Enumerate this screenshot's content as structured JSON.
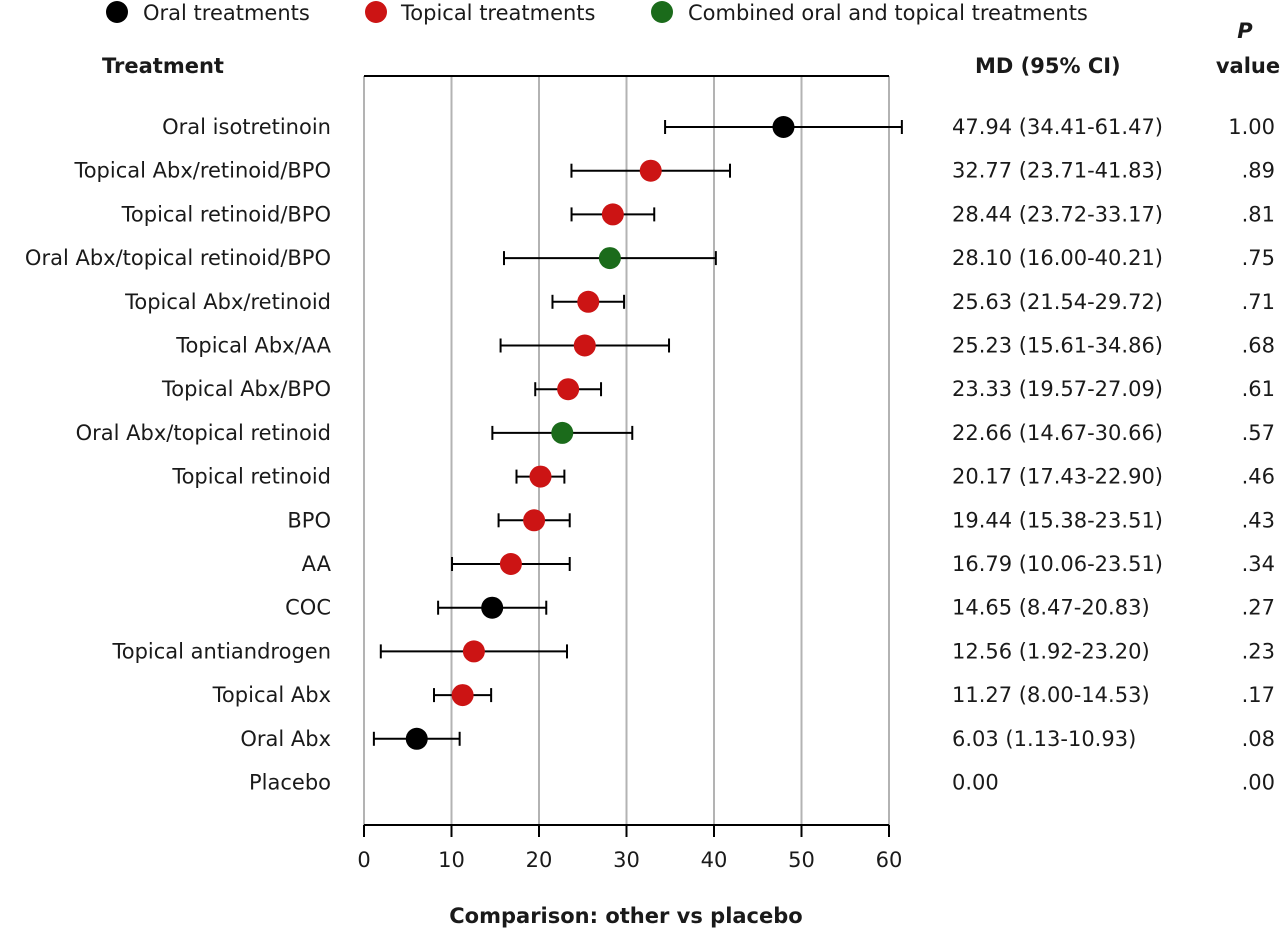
{
  "legend": [
    {
      "label": "Oral treatments",
      "color": "#000000"
    },
    {
      "label": "Topical treatments",
      "color": "#cc1414"
    },
    {
      "label": "Combined oral and topical treatments",
      "color": "#1b6b1b"
    }
  ],
  "headers": {
    "treatment": "Treatment",
    "md": "MD (95% CI)",
    "p_italic": "P",
    "p_value": "value"
  },
  "chart_data": {
    "type": "scatter",
    "xlabel": "Comparison: other vs placebo",
    "xlim": [
      0,
      60
    ],
    "xticks": [
      0,
      10,
      20,
      30,
      40,
      50,
      60
    ],
    "grid": "vertical",
    "legend_position": "top",
    "rows": [
      {
        "label": "Oral isotretinoin",
        "md": 47.94,
        "lo": 34.41,
        "hi": 61.47,
        "md_text": "47.94 (34.41-61.47)",
        "p": "1.00",
        "group": 0
      },
      {
        "label": "Topical Abx/retinoid/BPO",
        "md": 32.77,
        "lo": 23.71,
        "hi": 41.83,
        "md_text": "32.77 (23.71-41.83)",
        "p": ".89",
        "group": 1
      },
      {
        "label": "Topical retinoid/BPO",
        "md": 28.44,
        "lo": 23.72,
        "hi": 33.17,
        "md_text": "28.44 (23.72-33.17)",
        "p": ".81",
        "group": 1
      },
      {
        "label": "Oral Abx/topical retinoid/BPO",
        "md": 28.1,
        "lo": 16.0,
        "hi": 40.21,
        "md_text": "28.10 (16.00-40.21)",
        "p": ".75",
        "group": 2
      },
      {
        "label": "Topical Abx/retinoid",
        "md": 25.63,
        "lo": 21.54,
        "hi": 29.72,
        "md_text": "25.63 (21.54-29.72)",
        "p": ".71",
        "group": 1
      },
      {
        "label": "Topical Abx/AA",
        "md": 25.23,
        "lo": 15.61,
        "hi": 34.86,
        "md_text": "25.23 (15.61-34.86)",
        "p": ".68",
        "group": 1
      },
      {
        "label": "Topical Abx/BPO",
        "md": 23.33,
        "lo": 19.57,
        "hi": 27.09,
        "md_text": "23.33 (19.57-27.09)",
        "p": ".61",
        "group": 1
      },
      {
        "label": "Oral Abx/topical retinoid",
        "md": 22.66,
        "lo": 14.67,
        "hi": 30.66,
        "md_text": "22.66 (14.67-30.66)",
        "p": ".57",
        "group": 2
      },
      {
        "label": "Topical retinoid",
        "md": 20.17,
        "lo": 17.43,
        "hi": 22.9,
        "md_text": "20.17 (17.43-22.90)",
        "p": ".46",
        "group": 1
      },
      {
        "label": "BPO",
        "md": 19.44,
        "lo": 15.38,
        "hi": 23.51,
        "md_text": "19.44 (15.38-23.51)",
        "p": ".43",
        "group": 1
      },
      {
        "label": "AA",
        "md": 16.79,
        "lo": 10.06,
        "hi": 23.51,
        "md_text": "16.79 (10.06-23.51)",
        "p": ".34",
        "group": 1
      },
      {
        "label": "COC",
        "md": 14.65,
        "lo": 8.47,
        "hi": 20.83,
        "md_text": "14.65 (8.47-20.83)",
        "p": ".27",
        "group": 0
      },
      {
        "label": "Topical antiandrogen",
        "md": 12.56,
        "lo": 1.92,
        "hi": 23.2,
        "md_text": "12.56 (1.92-23.20)",
        "p": ".23",
        "group": 1
      },
      {
        "label": "Topical Abx",
        "md": 11.27,
        "lo": 8.0,
        "hi": 14.53,
        "md_text": "11.27 (8.00-14.53)",
        "p": ".17",
        "group": 1
      },
      {
        "label": "Oral Abx",
        "md": 6.03,
        "lo": 1.13,
        "hi": 10.93,
        "md_text": "6.03 (1.13-10.93)",
        "p": ".08",
        "group": 0
      },
      {
        "label": "Placebo",
        "md": null,
        "lo": null,
        "hi": null,
        "md_text": "0.00",
        "p": ".00",
        "group": null
      }
    ]
  }
}
